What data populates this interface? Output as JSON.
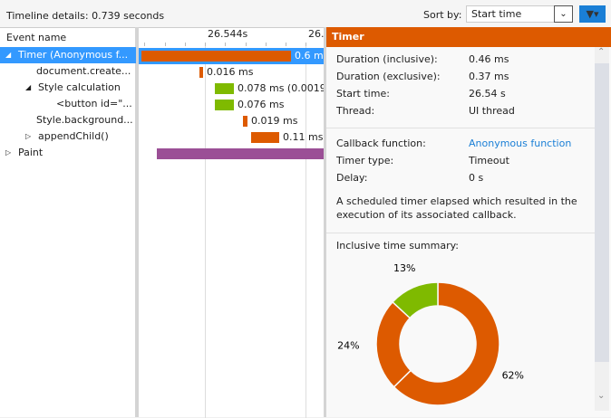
{
  "toolbar": {
    "title": "Timeline details: 0.739 seconds",
    "sort_label": "Sort by:",
    "sort_value": "Start time",
    "dropdown_icon": "chevron-down",
    "filter_icon": "funnel",
    "accent": "#1a7fd6"
  },
  "events": {
    "header": "Event name",
    "rows": [
      {
        "label": "Timer (Anonymous f...",
        "expander": "expanded",
        "bar_label": "0.6 m",
        "color": "#dd5a00",
        "selected": true
      },
      {
        "label": "document.create...",
        "expander": "",
        "bar_label": "0.016 ms",
        "color": "#dd5a00"
      },
      {
        "label": "Style calculation",
        "expander": "expanded",
        "bar_label": "0.078 ms (0.0019...",
        "color": "#7fba00"
      },
      {
        "label": "<button id=\"...",
        "expander": "",
        "bar_label": "0.076 ms",
        "color": "#7fba00"
      },
      {
        "label": "Style.background...",
        "expander": "",
        "bar_label": "0.019 ms",
        "color": "#dd5a00"
      },
      {
        "label": "appendChild()",
        "expander": "collapsed",
        "bar_label": "0.11 ms",
        "color": "#dd5a00"
      },
      {
        "label": "Paint",
        "expander": "collapsed",
        "bar_label": "",
        "color": "#9b4f96"
      }
    ]
  },
  "timeline": {
    "ticks": [
      "26.544s",
      "26."
    ]
  },
  "details": {
    "title": "Timer",
    "header_color": "#dd5a00",
    "group1": [
      {
        "k": "Duration (inclusive):",
        "v": "0.46 ms"
      },
      {
        "k": "Duration (exclusive):",
        "v": "0.37 ms"
      },
      {
        "k": "Start time:",
        "v": "26.54 s"
      },
      {
        "k": "Thread:",
        "v": "UI thread"
      }
    ],
    "group2": [
      {
        "k": "Callback function:",
        "v": "Anonymous function"
      },
      {
        "k": "Timer type:",
        "v": "Timeout"
      },
      {
        "k": "Delay:",
        "v": "0 s"
      }
    ],
    "description": "A scheduled timer elapsed which resulted in the execution of its associated callback.",
    "summary_label": "Inclusive time summary:"
  },
  "chart_data": {
    "type": "pie",
    "donut": true,
    "values": [
      62,
      24,
      13
    ],
    "labels": [
      "62%",
      "24%",
      "13%"
    ],
    "colors": [
      "#dd5a00",
      "#dd5a00",
      "#7fba00"
    ]
  }
}
